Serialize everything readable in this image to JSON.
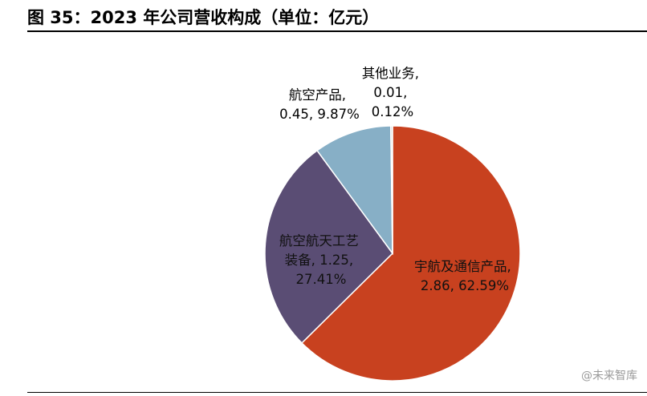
{
  "header": {
    "title": "图 35：2023 年公司营收构成（单位：亿元）"
  },
  "chart_data": {
    "type": "pie",
    "unit": "亿元",
    "slices": [
      {
        "name": "宇航及通信产品",
        "value": 2.86,
        "percent": "62.59%",
        "label_line1": "宇航及通信产品,",
        "label_line2": "2.86, 62.59%",
        "color": "#c8411f"
      },
      {
        "name": "航空航天工艺装备",
        "value": 1.25,
        "percent": "27.41%",
        "label_line1": "航空航天工艺",
        "label_line2": "装备, 1.25,",
        "label_line3": "27.41%",
        "color": "#5a4d74"
      },
      {
        "name": "航空产品",
        "value": 0.45,
        "percent": "9.87%",
        "label_line1": "航空产品,",
        "label_line2": "0.45, 9.87%",
        "color": "#87afc6"
      },
      {
        "name": "其他业务",
        "value": 0.01,
        "percent": "0.12%",
        "label_line1": "其他业务,",
        "label_line2": "0.01,",
        "label_line3": "0.12%",
        "color": "#c8c8c8"
      }
    ]
  },
  "watermark": {
    "text": "@未来智库"
  }
}
